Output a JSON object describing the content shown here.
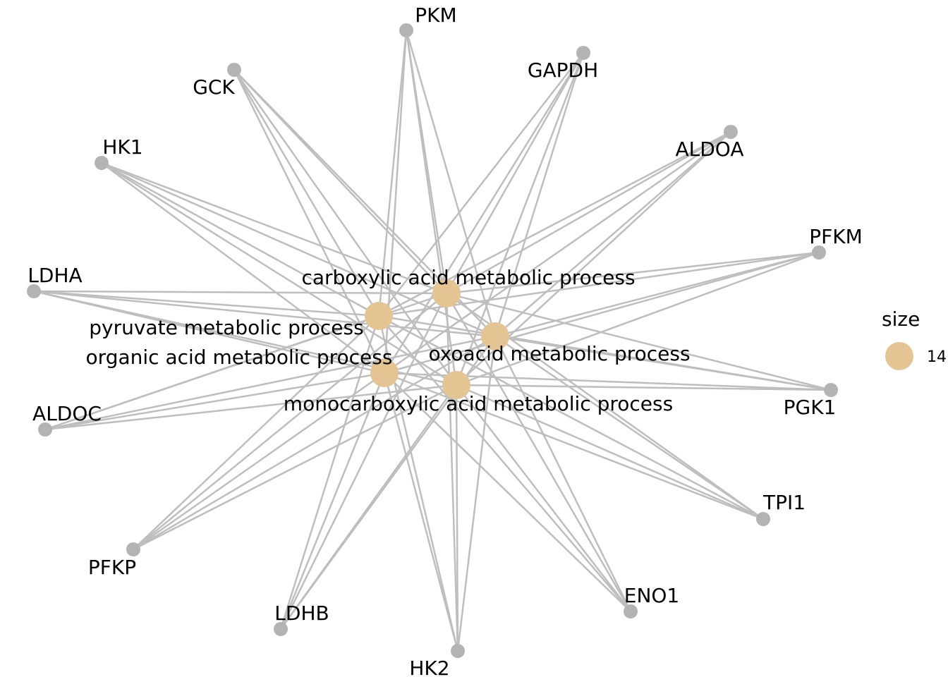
{
  "colors": {
    "gene": "#b3b3b3",
    "term": "#e5c494",
    "edge": "#bebebe"
  },
  "terms": [
    {
      "id": "carb",
      "label": "carboxylic acid metabolic process"
    },
    {
      "id": "pyr",
      "label": "pyruvate metabolic process"
    },
    {
      "id": "oxo",
      "label": "oxoacid metabolic process"
    },
    {
      "id": "org",
      "label": "organic acid metabolic process"
    },
    {
      "id": "mono",
      "label": "monocarboxylic acid metabolic process"
    }
  ],
  "genes": [
    {
      "id": "PKM",
      "label": "PKM"
    },
    {
      "id": "GAPDH",
      "label": "GAPDH"
    },
    {
      "id": "GCK",
      "label": "GCK"
    },
    {
      "id": "ALDOA",
      "label": "ALDOA"
    },
    {
      "id": "HK1",
      "label": "HK1"
    },
    {
      "id": "PFKM",
      "label": "PFKM"
    },
    {
      "id": "LDHA",
      "label": "LDHA"
    },
    {
      "id": "PGK1",
      "label": "PGK1"
    },
    {
      "id": "ALDOC",
      "label": "ALDOC"
    },
    {
      "id": "TPI1",
      "label": "TPI1"
    },
    {
      "id": "PFKP",
      "label": "PFKP"
    },
    {
      "id": "ENO1",
      "label": "ENO1"
    },
    {
      "id": "LDHB",
      "label": "LDHB"
    },
    {
      "id": "HK2",
      "label": "HK2"
    }
  ],
  "legend": {
    "title": "size",
    "value": "14"
  }
}
